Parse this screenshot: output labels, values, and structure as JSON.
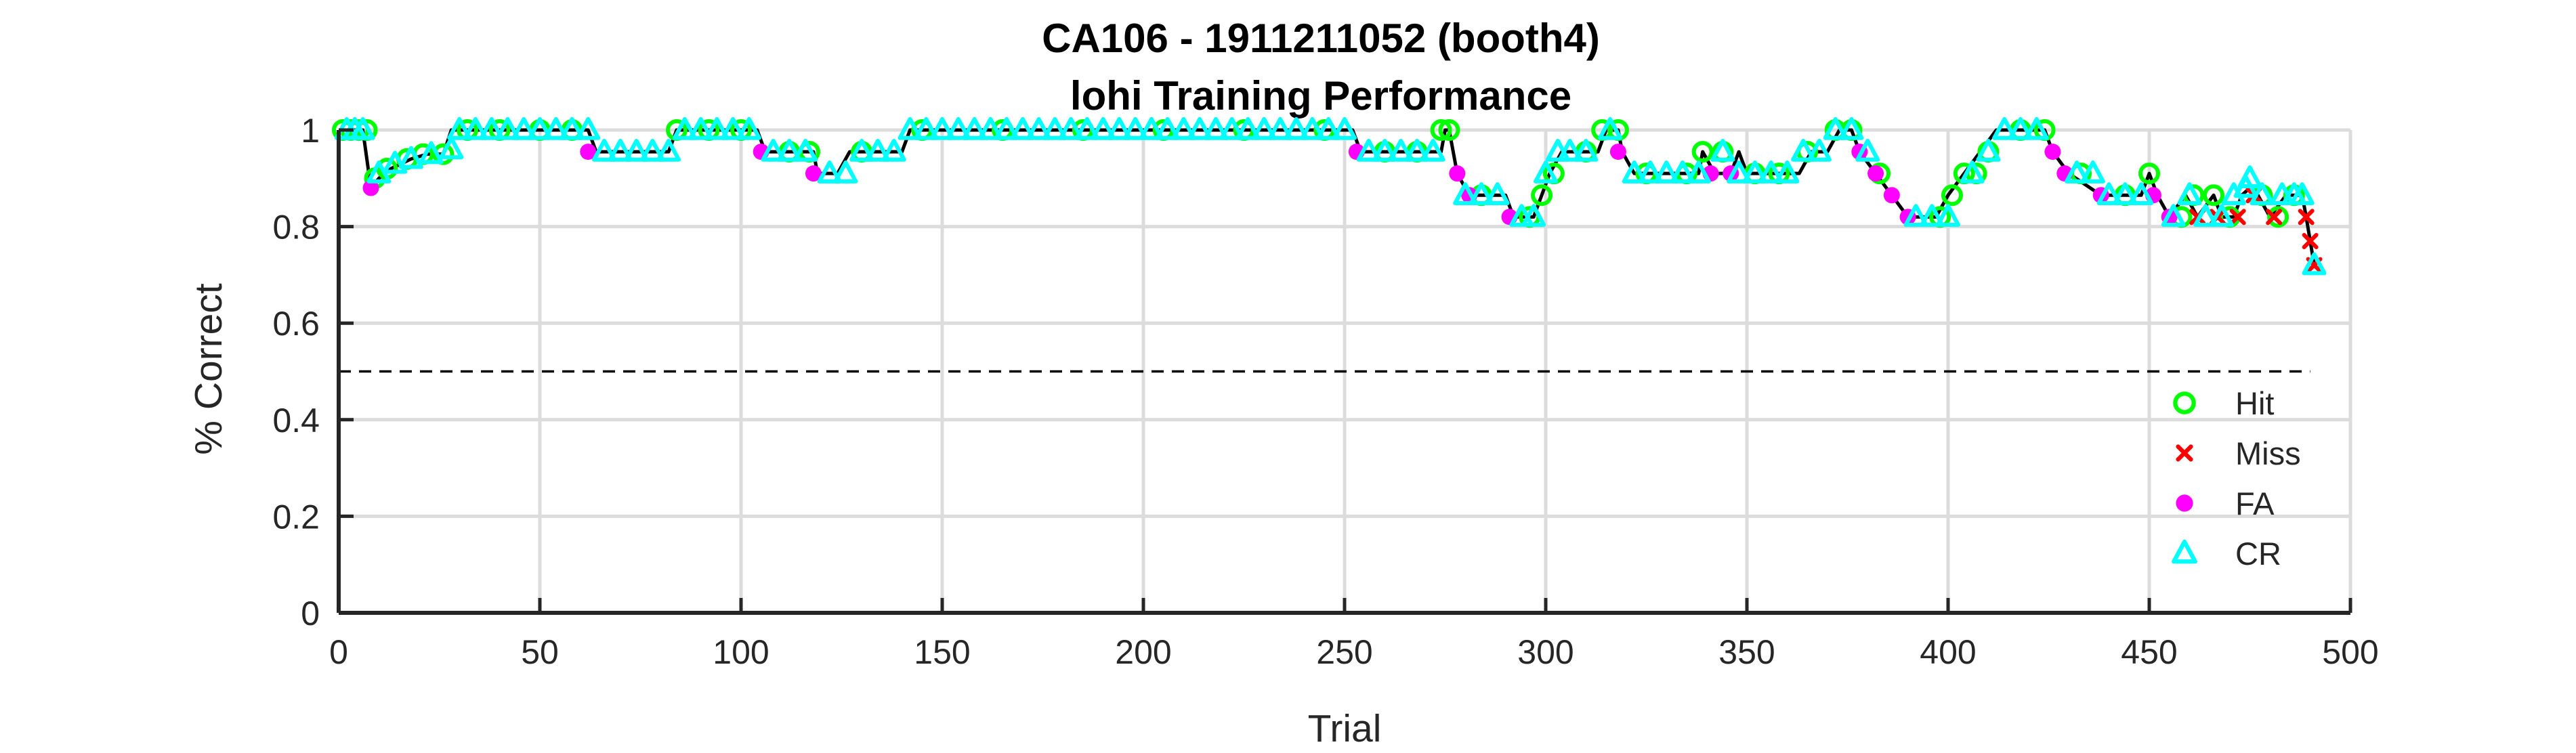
{
  "chart_data": {
    "type": "scatter",
    "title": "CA106 - 1911211052 (booth4)",
    "subtitle": "lohi Training Performance",
    "xlabel": "Trial",
    "ylabel": "% Correct",
    "xlim": [
      0,
      500
    ],
    "ylim": [
      0,
      1
    ],
    "xticks": [
      "0",
      "50",
      "100",
      "150",
      "200",
      "250",
      "300",
      "350",
      "400",
      "450",
      "500"
    ],
    "yticks": [
      "0",
      "0.2",
      "0.4",
      "0.6",
      "0.8",
      "1"
    ],
    "grid": true,
    "legend_position": "bottom-right",
    "chance_line": 0.5,
    "legend": [
      {
        "name": "Hit",
        "color": "#00ff00",
        "marker": "circle"
      },
      {
        "name": "Miss",
        "color": "#ff0000",
        "marker": "x"
      },
      {
        "name": "FA",
        "color": "#ff00ff",
        "marker": "dot"
      },
      {
        "name": "CR",
        "color": "#00ffff",
        "marker": "triangle"
      }
    ],
    "performance_curve": [
      [
        1,
        1.0
      ],
      [
        6,
        1.0
      ],
      [
        8,
        0.88
      ],
      [
        10,
        0.9
      ],
      [
        13,
        0.92
      ],
      [
        18,
        0.94
      ],
      [
        22,
        0.95
      ],
      [
        26,
        0.95
      ],
      [
        28,
        1.0
      ],
      [
        62,
        1.0
      ],
      [
        64,
        0.955
      ],
      [
        82,
        0.955
      ],
      [
        84,
        1.0
      ],
      [
        104,
        1.0
      ],
      [
        106,
        0.955
      ],
      [
        118,
        0.955
      ],
      [
        119,
        0.91
      ],
      [
        124,
        0.91
      ],
      [
        127,
        0.955
      ],
      [
        140,
        0.955
      ],
      [
        142,
        1.0
      ],
      [
        252,
        1.0
      ],
      [
        254,
        0.955
      ],
      [
        274,
        0.955
      ],
      [
        275,
        1.0
      ],
      [
        276,
        1.0
      ],
      [
        278,
        0.91
      ],
      [
        281,
        0.865
      ],
      [
        290,
        0.865
      ],
      [
        292,
        0.82
      ],
      [
        297,
        0.82
      ],
      [
        299,
        0.865
      ],
      [
        301,
        0.91
      ],
      [
        304,
        0.955
      ],
      [
        313,
        0.955
      ],
      [
        315,
        1.0
      ],
      [
        318,
        1.0
      ],
      [
        319,
        0.955
      ],
      [
        322,
        0.91
      ],
      [
        338,
        0.91
      ],
      [
        339,
        0.955
      ],
      [
        342,
        0.91
      ],
      [
        346,
        0.91
      ],
      [
        348,
        0.955
      ],
      [
        350,
        0.91
      ],
      [
        363,
        0.91
      ],
      [
        366,
        0.955
      ],
      [
        370,
        0.955
      ],
      [
        373,
        1.0
      ],
      [
        376,
        1.0
      ],
      [
        378,
        0.955
      ],
      [
        382,
        0.91
      ],
      [
        386,
        0.865
      ],
      [
        390,
        0.82
      ],
      [
        397,
        0.82
      ],
      [
        400,
        0.865
      ],
      [
        404,
        0.91
      ],
      [
        408,
        0.955
      ],
      [
        412,
        1.0
      ],
      [
        424,
        1.0
      ],
      [
        426,
        0.955
      ],
      [
        430,
        0.91
      ],
      [
        438,
        0.865
      ],
      [
        448,
        0.865
      ],
      [
        450,
        0.91
      ],
      [
        452,
        0.865
      ],
      [
        455,
        0.82
      ],
      [
        459,
        0.865
      ],
      [
        462,
        0.82
      ],
      [
        466,
        0.865
      ],
      [
        468,
        0.82
      ],
      [
        471,
        0.82
      ],
      [
        473,
        0.865
      ],
      [
        475,
        0.88
      ],
      [
        477,
        0.865
      ],
      [
        480,
        0.82
      ],
      [
        484,
        0.865
      ],
      [
        488,
        0.865
      ],
      [
        489,
        0.82
      ],
      [
        490,
        0.77
      ],
      [
        491,
        0.72
      ]
    ],
    "series": [
      {
        "name": "Hit",
        "points": [
          [
            1,
            1.0
          ],
          [
            3,
            1.0
          ],
          [
            5,
            1.0
          ],
          [
            7,
            1.0
          ],
          [
            9,
            0.9
          ],
          [
            12,
            0.92
          ],
          [
            17,
            0.94
          ],
          [
            21,
            0.95
          ],
          [
            26,
            0.95
          ],
          [
            32,
            1.0
          ],
          [
            40,
            1.0
          ],
          [
            50,
            1.0
          ],
          [
            58,
            1.0
          ],
          [
            84,
            1.0
          ],
          [
            92,
            1.0
          ],
          [
            100,
            1.0
          ],
          [
            112,
            0.955
          ],
          [
            117,
            0.955
          ],
          [
            130,
            0.955
          ],
          [
            145,
            1.0
          ],
          [
            165,
            1.0
          ],
          [
            185,
            1.0
          ],
          [
            205,
            1.0
          ],
          [
            225,
            1.0
          ],
          [
            245,
            1.0
          ],
          [
            260,
            0.955
          ],
          [
            268,
            0.955
          ],
          [
            274,
            1.0
          ],
          [
            276,
            1.0
          ],
          [
            284,
            0.865
          ],
          [
            296,
            0.82
          ],
          [
            299,
            0.865
          ],
          [
            302,
            0.91
          ],
          [
            310,
            0.955
          ],
          [
            314,
            1.0
          ],
          [
            318,
            1.0
          ],
          [
            325,
            0.91
          ],
          [
            335,
            0.91
          ],
          [
            339,
            0.955
          ],
          [
            344,
            0.955
          ],
          [
            352,
            0.91
          ],
          [
            358,
            0.91
          ],
          [
            365,
            0.955
          ],
          [
            372,
            1.0
          ],
          [
            376,
            1.0
          ],
          [
            383,
            0.91
          ],
          [
            398,
            0.82
          ],
          [
            401,
            0.865
          ],
          [
            404,
            0.91
          ],
          [
            407,
            0.91
          ],
          [
            410,
            0.955
          ],
          [
            418,
            1.0
          ],
          [
            424,
            1.0
          ],
          [
            433,
            0.91
          ],
          [
            444,
            0.865
          ],
          [
            450,
            0.91
          ],
          [
            458,
            0.82
          ],
          [
            461,
            0.865
          ],
          [
            466,
            0.865
          ],
          [
            470,
            0.82
          ],
          [
            478,
            0.865
          ],
          [
            482,
            0.82
          ],
          [
            486,
            0.865
          ]
        ]
      },
      {
        "name": "Miss",
        "points": [
          [
            462,
            0.82
          ],
          [
            467,
            0.82
          ],
          [
            472,
            0.82
          ],
          [
            476,
            0.865
          ],
          [
            481,
            0.82
          ],
          [
            489,
            0.82
          ],
          [
            490,
            0.77
          ],
          [
            491,
            0.72
          ]
        ]
      },
      {
        "name": "FA",
        "points": [
          [
            8,
            0.88
          ],
          [
            62,
            0.955
          ],
          [
            105,
            0.955
          ],
          [
            118,
            0.91
          ],
          [
            253,
            0.955
          ],
          [
            278,
            0.91
          ],
          [
            281,
            0.865
          ],
          [
            291,
            0.82
          ],
          [
            318,
            0.955
          ],
          [
            341,
            0.91
          ],
          [
            346,
            0.91
          ],
          [
            378,
            0.955
          ],
          [
            382,
            0.91
          ],
          [
            386,
            0.865
          ],
          [
            390,
            0.82
          ],
          [
            426,
            0.955
          ],
          [
            429,
            0.91
          ],
          [
            438,
            0.865
          ],
          [
            451,
            0.865
          ],
          [
            455,
            0.82
          ]
        ]
      },
      {
        "name": "CR",
        "points": [
          [
            2,
            1.0
          ],
          [
            4,
            1.0
          ],
          [
            6,
            1.0
          ],
          [
            10,
            0.91
          ],
          [
            14,
            0.93
          ],
          [
            18,
            0.94
          ],
          [
            23,
            0.95
          ],
          [
            28,
            0.96
          ],
          [
            30,
            1.0
          ],
          [
            34,
            1.0
          ],
          [
            38,
            1.0
          ],
          [
            42,
            1.0
          ],
          [
            46,
            1.0
          ],
          [
            50,
            1.0
          ],
          [
            54,
            1.0
          ],
          [
            58,
            1.0
          ],
          [
            62,
            1.0
          ],
          [
            66,
            0.955
          ],
          [
            70,
            0.955
          ],
          [
            74,
            0.955
          ],
          [
            78,
            0.955
          ],
          [
            82,
            0.955
          ],
          [
            86,
            1.0
          ],
          [
            90,
            1.0
          ],
          [
            94,
            1.0
          ],
          [
            98,
            1.0
          ],
          [
            102,
            1.0
          ],
          [
            108,
            0.955
          ],
          [
            112,
            0.955
          ],
          [
            116,
            0.955
          ],
          [
            122,
            0.91
          ],
          [
            126,
            0.91
          ],
          [
            130,
            0.955
          ],
          [
            134,
            0.955
          ],
          [
            138,
            0.955
          ],
          [
            142,
            1.0
          ],
          [
            146,
            1.0
          ],
          [
            150,
            1.0
          ],
          [
            154,
            1.0
          ],
          [
            158,
            1.0
          ],
          [
            162,
            1.0
          ],
          [
            166,
            1.0
          ],
          [
            170,
            1.0
          ],
          [
            174,
            1.0
          ],
          [
            178,
            1.0
          ],
          [
            182,
            1.0
          ],
          [
            186,
            1.0
          ],
          [
            190,
            1.0
          ],
          [
            194,
            1.0
          ],
          [
            198,
            1.0
          ],
          [
            202,
            1.0
          ],
          [
            206,
            1.0
          ],
          [
            210,
            1.0
          ],
          [
            214,
            1.0
          ],
          [
            218,
            1.0
          ],
          [
            222,
            1.0
          ],
          [
            226,
            1.0
          ],
          [
            230,
            1.0
          ],
          [
            234,
            1.0
          ],
          [
            238,
            1.0
          ],
          [
            242,
            1.0
          ],
          [
            246,
            1.0
          ],
          [
            250,
            1.0
          ],
          [
            256,
            0.955
          ],
          [
            260,
            0.955
          ],
          [
            264,
            0.955
          ],
          [
            268,
            0.955
          ],
          [
            272,
            0.955
          ],
          [
            280,
            0.865
          ],
          [
            284,
            0.865
          ],
          [
            288,
            0.865
          ],
          [
            294,
            0.82
          ],
          [
            297,
            0.82
          ],
          [
            300,
            0.91
          ],
          [
            303,
            0.955
          ],
          [
            306,
            0.955
          ],
          [
            310,
            0.955
          ],
          [
            316,
            1.0
          ],
          [
            322,
            0.91
          ],
          [
            326,
            0.91
          ],
          [
            330,
            0.91
          ],
          [
            334,
            0.91
          ],
          [
            338,
            0.91
          ],
          [
            344,
            0.955
          ],
          [
            348,
            0.91
          ],
          [
            352,
            0.91
          ],
          [
            356,
            0.91
          ],
          [
            360,
            0.91
          ],
          [
            364,
            0.955
          ],
          [
            368,
            0.955
          ],
          [
            372,
            1.0
          ],
          [
            376,
            1.0
          ],
          [
            380,
            0.955
          ],
          [
            392,
            0.82
          ],
          [
            396,
            0.82
          ],
          [
            400,
            0.82
          ],
          [
            406,
            0.91
          ],
          [
            410,
            0.955
          ],
          [
            414,
            1.0
          ],
          [
            418,
            1.0
          ],
          [
            422,
            1.0
          ],
          [
            432,
            0.91
          ],
          [
            436,
            0.91
          ],
          [
            440,
            0.865
          ],
          [
            444,
            0.865
          ],
          [
            448,
            0.865
          ],
          [
            456,
            0.82
          ],
          [
            460,
            0.865
          ],
          [
            464,
            0.82
          ],
          [
            468,
            0.82
          ],
          [
            471,
            0.865
          ],
          [
            474,
            0.88
          ],
          [
            475,
            0.9
          ],
          [
            478,
            0.865
          ],
          [
            483,
            0.865
          ],
          [
            486,
            0.865
          ],
          [
            488,
            0.865
          ],
          [
            491,
            0.72
          ]
        ]
      }
    ]
  }
}
